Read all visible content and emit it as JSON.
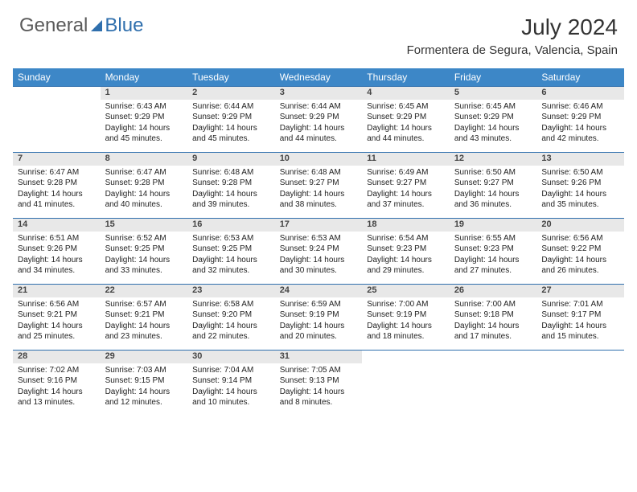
{
  "brand": {
    "text1": "General",
    "text2": "Blue"
  },
  "title": "July 2024",
  "subtitle": "Formentera de Segura, Valencia, Spain",
  "colors": {
    "header_bg": "#3d87c7",
    "header_fg": "#ffffff",
    "daynum_bg": "#e8e8e8",
    "rule": "#2f6fad",
    "brand_gray": "#5a5a5a",
    "brand_blue": "#2f6fad"
  },
  "day_headers": [
    "Sunday",
    "Monday",
    "Tuesday",
    "Wednesday",
    "Thursday",
    "Friday",
    "Saturday"
  ],
  "weeks": [
    {
      "nums": [
        "",
        "1",
        "2",
        "3",
        "4",
        "5",
        "6"
      ],
      "cells": [
        null,
        {
          "sunrise": "Sunrise: 6:43 AM",
          "sunset": "Sunset: 9:29 PM",
          "d1": "Daylight: 14 hours",
          "d2": "and 45 minutes."
        },
        {
          "sunrise": "Sunrise: 6:44 AM",
          "sunset": "Sunset: 9:29 PM",
          "d1": "Daylight: 14 hours",
          "d2": "and 45 minutes."
        },
        {
          "sunrise": "Sunrise: 6:44 AM",
          "sunset": "Sunset: 9:29 PM",
          "d1": "Daylight: 14 hours",
          "d2": "and 44 minutes."
        },
        {
          "sunrise": "Sunrise: 6:45 AM",
          "sunset": "Sunset: 9:29 PM",
          "d1": "Daylight: 14 hours",
          "d2": "and 44 minutes."
        },
        {
          "sunrise": "Sunrise: 6:45 AM",
          "sunset": "Sunset: 9:29 PM",
          "d1": "Daylight: 14 hours",
          "d2": "and 43 minutes."
        },
        {
          "sunrise": "Sunrise: 6:46 AM",
          "sunset": "Sunset: 9:29 PM",
          "d1": "Daylight: 14 hours",
          "d2": "and 42 minutes."
        }
      ]
    },
    {
      "nums": [
        "7",
        "8",
        "9",
        "10",
        "11",
        "12",
        "13"
      ],
      "cells": [
        {
          "sunrise": "Sunrise: 6:47 AM",
          "sunset": "Sunset: 9:28 PM",
          "d1": "Daylight: 14 hours",
          "d2": "and 41 minutes."
        },
        {
          "sunrise": "Sunrise: 6:47 AM",
          "sunset": "Sunset: 9:28 PM",
          "d1": "Daylight: 14 hours",
          "d2": "and 40 minutes."
        },
        {
          "sunrise": "Sunrise: 6:48 AM",
          "sunset": "Sunset: 9:28 PM",
          "d1": "Daylight: 14 hours",
          "d2": "and 39 minutes."
        },
        {
          "sunrise": "Sunrise: 6:48 AM",
          "sunset": "Sunset: 9:27 PM",
          "d1": "Daylight: 14 hours",
          "d2": "and 38 minutes."
        },
        {
          "sunrise": "Sunrise: 6:49 AM",
          "sunset": "Sunset: 9:27 PM",
          "d1": "Daylight: 14 hours",
          "d2": "and 37 minutes."
        },
        {
          "sunrise": "Sunrise: 6:50 AM",
          "sunset": "Sunset: 9:27 PM",
          "d1": "Daylight: 14 hours",
          "d2": "and 36 minutes."
        },
        {
          "sunrise": "Sunrise: 6:50 AM",
          "sunset": "Sunset: 9:26 PM",
          "d1": "Daylight: 14 hours",
          "d2": "and 35 minutes."
        }
      ]
    },
    {
      "nums": [
        "14",
        "15",
        "16",
        "17",
        "18",
        "19",
        "20"
      ],
      "cells": [
        {
          "sunrise": "Sunrise: 6:51 AM",
          "sunset": "Sunset: 9:26 PM",
          "d1": "Daylight: 14 hours",
          "d2": "and 34 minutes."
        },
        {
          "sunrise": "Sunrise: 6:52 AM",
          "sunset": "Sunset: 9:25 PM",
          "d1": "Daylight: 14 hours",
          "d2": "and 33 minutes."
        },
        {
          "sunrise": "Sunrise: 6:53 AM",
          "sunset": "Sunset: 9:25 PM",
          "d1": "Daylight: 14 hours",
          "d2": "and 32 minutes."
        },
        {
          "sunrise": "Sunrise: 6:53 AM",
          "sunset": "Sunset: 9:24 PM",
          "d1": "Daylight: 14 hours",
          "d2": "and 30 minutes."
        },
        {
          "sunrise": "Sunrise: 6:54 AM",
          "sunset": "Sunset: 9:23 PM",
          "d1": "Daylight: 14 hours",
          "d2": "and 29 minutes."
        },
        {
          "sunrise": "Sunrise: 6:55 AM",
          "sunset": "Sunset: 9:23 PM",
          "d1": "Daylight: 14 hours",
          "d2": "and 27 minutes."
        },
        {
          "sunrise": "Sunrise: 6:56 AM",
          "sunset": "Sunset: 9:22 PM",
          "d1": "Daylight: 14 hours",
          "d2": "and 26 minutes."
        }
      ]
    },
    {
      "nums": [
        "21",
        "22",
        "23",
        "24",
        "25",
        "26",
        "27"
      ],
      "cells": [
        {
          "sunrise": "Sunrise: 6:56 AM",
          "sunset": "Sunset: 9:21 PM",
          "d1": "Daylight: 14 hours",
          "d2": "and 25 minutes."
        },
        {
          "sunrise": "Sunrise: 6:57 AM",
          "sunset": "Sunset: 9:21 PM",
          "d1": "Daylight: 14 hours",
          "d2": "and 23 minutes."
        },
        {
          "sunrise": "Sunrise: 6:58 AM",
          "sunset": "Sunset: 9:20 PM",
          "d1": "Daylight: 14 hours",
          "d2": "and 22 minutes."
        },
        {
          "sunrise": "Sunrise: 6:59 AM",
          "sunset": "Sunset: 9:19 PM",
          "d1": "Daylight: 14 hours",
          "d2": "and 20 minutes."
        },
        {
          "sunrise": "Sunrise: 7:00 AM",
          "sunset": "Sunset: 9:19 PM",
          "d1": "Daylight: 14 hours",
          "d2": "and 18 minutes."
        },
        {
          "sunrise": "Sunrise: 7:00 AM",
          "sunset": "Sunset: 9:18 PM",
          "d1": "Daylight: 14 hours",
          "d2": "and 17 minutes."
        },
        {
          "sunrise": "Sunrise: 7:01 AM",
          "sunset": "Sunset: 9:17 PM",
          "d1": "Daylight: 14 hours",
          "d2": "and 15 minutes."
        }
      ]
    },
    {
      "nums": [
        "28",
        "29",
        "30",
        "31",
        "",
        "",
        ""
      ],
      "cells": [
        {
          "sunrise": "Sunrise: 7:02 AM",
          "sunset": "Sunset: 9:16 PM",
          "d1": "Daylight: 14 hours",
          "d2": "and 13 minutes."
        },
        {
          "sunrise": "Sunrise: 7:03 AM",
          "sunset": "Sunset: 9:15 PM",
          "d1": "Daylight: 14 hours",
          "d2": "and 12 minutes."
        },
        {
          "sunrise": "Sunrise: 7:04 AM",
          "sunset": "Sunset: 9:14 PM",
          "d1": "Daylight: 14 hours",
          "d2": "and 10 minutes."
        },
        {
          "sunrise": "Sunrise: 7:05 AM",
          "sunset": "Sunset: 9:13 PM",
          "d1": "Daylight: 14 hours",
          "d2": "and 8 minutes."
        },
        null,
        null,
        null
      ]
    }
  ]
}
